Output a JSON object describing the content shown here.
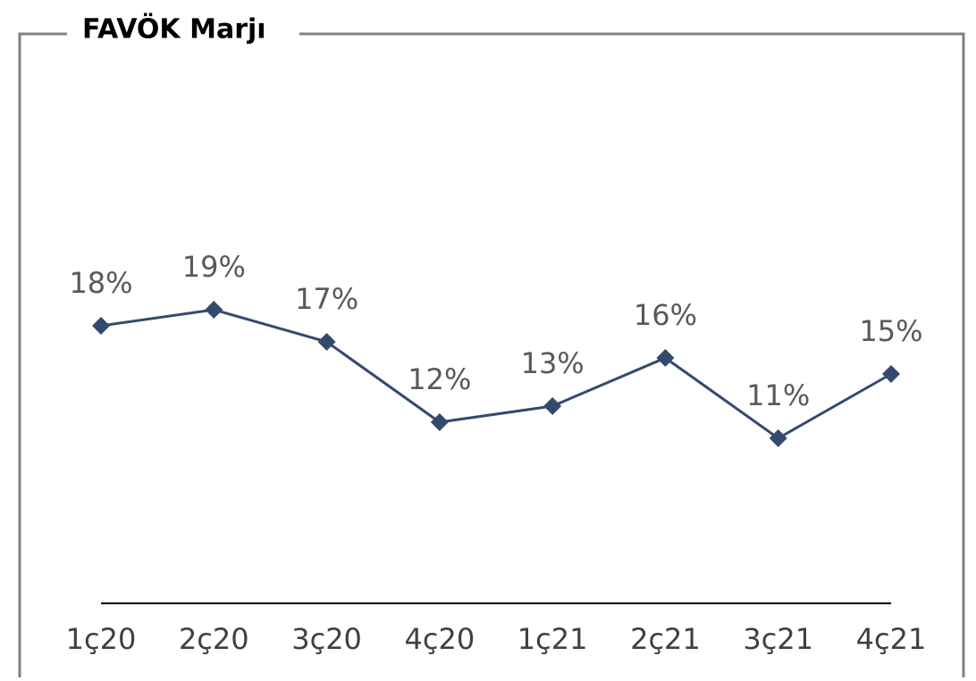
{
  "chart_data": {
    "type": "line",
    "title": "FAVÖK Marjı",
    "categories": [
      "1ç20",
      "2ç20",
      "3ç20",
      "4ç20",
      "1ç21",
      "2ç21",
      "3ç21",
      "4ç21"
    ],
    "series": [
      {
        "color": "#34496e",
        "values": [
          18,
          19,
          17,
          12,
          13,
          16,
          11,
          15
        ],
        "value_labels": [
          "18%",
          "19%",
          "17%",
          "12%",
          "13%",
          "16%",
          "11%",
          "15%"
        ]
      }
    ]
  }
}
